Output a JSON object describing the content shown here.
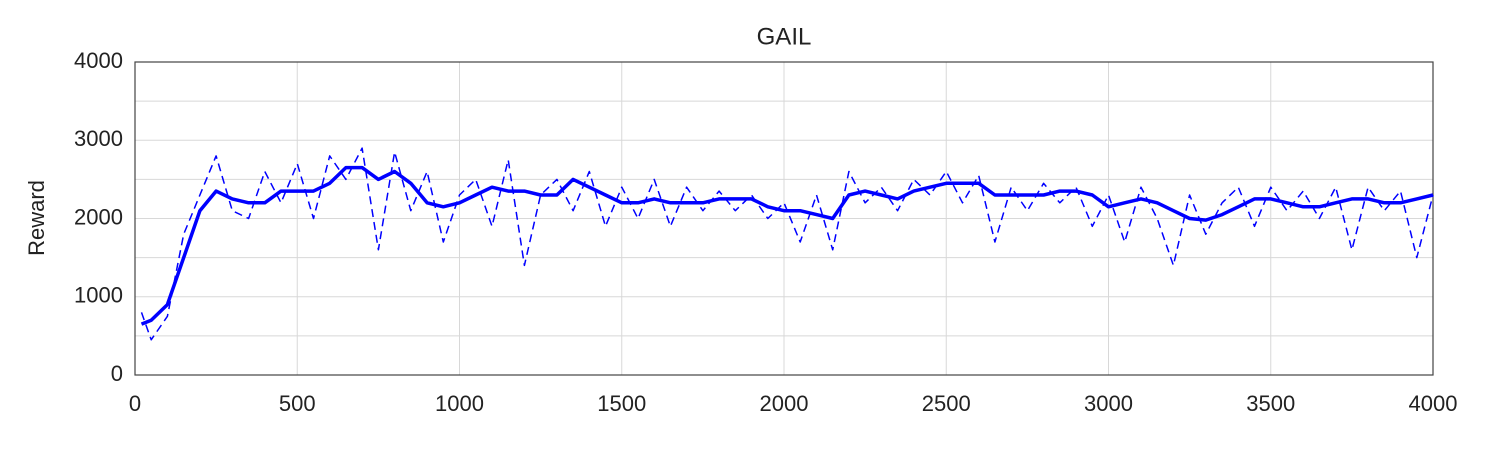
{
  "chart_data": {
    "type": "line",
    "title": "GAIL",
    "y_label": "Reward",
    "x": [
      20,
      50,
      100,
      150,
      200,
      250,
      300,
      350,
      400,
      450,
      500,
      550,
      600,
      650,
      700,
      750,
      800,
      850,
      900,
      950,
      1000,
      1050,
      1100,
      1150,
      1200,
      1250,
      1300,
      1350,
      1400,
      1450,
      1500,
      1550,
      1600,
      1650,
      1700,
      1750,
      1800,
      1850,
      1900,
      1950,
      2000,
      2050,
      2100,
      2150,
      2200,
      2250,
      2300,
      2350,
      2400,
      2450,
      2500,
      2550,
      2600,
      2650,
      2700,
      2750,
      2800,
      2850,
      2900,
      2950,
      3000,
      3050,
      3100,
      3150,
      3200,
      3250,
      3300,
      3350,
      3400,
      3450,
      3500,
      3550,
      3600,
      3650,
      3700,
      3750,
      3800,
      3850,
      3900,
      3950,
      4000
    ],
    "series": [
      {
        "color": "#0000ff",
        "line_style": "dashed",
        "line_width": 1.5,
        "values": [
          800,
          450,
          750,
          1800,
          2300,
          2800,
          2100,
          2000,
          2600,
          2200,
          2700,
          2000,
          2800,
          2500,
          2900,
          1600,
          2850,
          2100,
          2600,
          1700,
          2300,
          2500,
          1900,
          2750,
          1400,
          2300,
          2500,
          2100,
          2600,
          1900,
          2400,
          2000,
          2500,
          1900,
          2400,
          2100,
          2350,
          2100,
          2300,
          2000,
          2200,
          1700,
          2300,
          1600,
          2600,
          2200,
          2400,
          2100,
          2500,
          2300,
          2600,
          2200,
          2550,
          1700,
          2400,
          2100,
          2450,
          2200,
          2400,
          1900,
          2300,
          1700,
          2400,
          2000,
          1400,
          2300,
          1800,
          2200,
          2400,
          1900,
          2400,
          2100,
          2350,
          2000,
          2400,
          1600,
          2400,
          2100,
          2350,
          1500,
          2300
        ]
      },
      {
        "color": "#0000ff",
        "line_style": "solid",
        "line_width": 3.5,
        "values": [
          650,
          700,
          900,
          1500,
          2100,
          2350,
          2250,
          2200,
          2200,
          2350,
          2350,
          2350,
          2450,
          2650,
          2650,
          2500,
          2600,
          2450,
          2200,
          2150,
          2200,
          2300,
          2400,
          2350,
          2350,
          2300,
          2300,
          2500,
          2400,
          2300,
          2200,
          2200,
          2250,
          2200,
          2200,
          2200,
          2250,
          2250,
          2250,
          2150,
          2100,
          2100,
          2050,
          2000,
          2300,
          2350,
          2300,
          2250,
          2350,
          2400,
          2450,
          2450,
          2450,
          2300,
          2300,
          2300,
          2300,
          2350,
          2350,
          2300,
          2150,
          2200,
          2250,
          2200,
          2100,
          2000,
          1980,
          2050,
          2150,
          2250,
          2250,
          2200,
          2150,
          2150,
          2200,
          2250,
          2250,
          2200,
          2200,
          2250,
          2300
        ]
      }
    ],
    "xlim": [
      0,
      4000
    ],
    "xticks": [
      0,
      500,
      1000,
      1500,
      2000,
      2500,
      3000,
      3500,
      4000
    ],
    "ylim": [
      0,
      4000
    ],
    "yticks": [
      0,
      1000,
      2000,
      3000,
      4000
    ],
    "yminorgrid": [
      500,
      1500,
      2500,
      3500
    ],
    "grid": true
  }
}
